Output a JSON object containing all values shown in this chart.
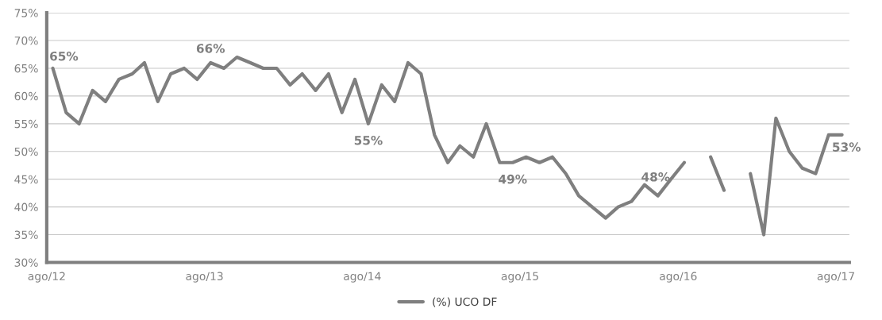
{
  "chart_data": {
    "type": "line",
    "x": [
      "2012-08-15",
      "2012-09-15",
      "2012-10-15",
      "2012-11-15",
      "2012-12-15",
      "2013-01-15",
      "2013-02-15",
      "2013-03-15",
      "2013-04-15",
      "2013-05-15",
      "2013-06-15",
      "2013-07-15",
      "2013-08-15",
      "2013-09-15",
      "2013-10-15",
      "2013-11-15",
      "2013-12-15",
      "2014-01-15",
      "2014-02-15",
      "2014-03-15",
      "2014-04-15",
      "2014-05-15",
      "2014-06-15",
      "2014-07-15",
      "2014-08-15",
      "2014-09-15",
      "2014-10-15",
      "2014-11-15",
      "2014-12-15",
      "2015-01-15",
      "2015-02-15",
      "2015-03-15",
      "2015-04-15",
      "2015-05-15",
      "2015-06-15",
      "2015-07-15",
      "2015-08-15",
      "2015-09-15",
      "2015-10-15",
      "2015-11-15",
      "2015-12-15",
      "2016-01-15",
      "2016-02-15",
      "2016-03-15",
      "2016-04-15",
      "2016-05-15",
      "2016-06-15",
      "2016-07-15",
      "2016-08-15",
      "2016-09-15",
      "2016-10-15",
      "2016-11-15",
      "2016-12-15",
      "2017-01-15",
      "2017-02-15",
      "2017-03-15",
      "2017-04-15",
      "2017-05-15",
      "2017-06-15",
      "2017-07-15",
      "2017-08-15"
    ],
    "series": [
      {
        "name": "(%) UCO DF",
        "color": "#7f7f7f",
        "values": [
          65,
          57,
          55,
          61,
          59,
          63,
          64,
          66,
          59,
          64,
          65,
          63,
          66,
          65,
          67,
          66,
          65,
          65,
          62,
          64,
          61,
          64,
          57,
          63,
          55,
          62,
          59,
          66,
          64,
          53,
          48,
          51,
          49,
          55,
          48,
          48,
          49,
          48,
          49,
          46,
          42,
          40,
          38,
          40,
          41,
          44,
          42,
          45,
          48,
          null,
          49,
          43,
          null,
          46,
          35,
          56,
          50,
          47,
          46,
          53,
          53
        ]
      }
    ],
    "xlim": [
      "2012-08-01",
      "2017-09-01"
    ],
    "xticks": [
      {
        "value": "2012-08-01",
        "label": "ago/12"
      },
      {
        "value": "2013-08-01",
        "label": "ago/13"
      },
      {
        "value": "2014-08-01",
        "label": "ago/14"
      },
      {
        "value": "2015-08-01",
        "label": "ago/15"
      },
      {
        "value": "2016-08-01",
        "label": "ago/16"
      },
      {
        "value": "2017-08-01",
        "label": "ago/17"
      }
    ],
    "ylim": [
      30,
      75
    ],
    "yticks": [
      {
        "value": 30,
        "label": "30%"
      },
      {
        "value": 35,
        "label": "35%"
      },
      {
        "value": 40,
        "label": "40%"
      },
      {
        "value": 45,
        "label": "45%"
      },
      {
        "value": 50,
        "label": "50%"
      },
      {
        "value": 55,
        "label": "55%"
      },
      {
        "value": 60,
        "label": "60%"
      },
      {
        "value": 65,
        "label": "65%"
      },
      {
        "value": 70,
        "label": "70%"
      },
      {
        "value": 75,
        "label": "75%"
      }
    ],
    "grid": "y",
    "legend": "bottom",
    "marker": "none",
    "line_style": "solid",
    "annotations": [
      {
        "text": "65%",
        "x": "2012-08-15",
        "y": 65
      },
      {
        "text": "66%",
        "x": "2013-08-15",
        "y": 66
      },
      {
        "text": "55%",
        "x": "2014-08-15",
        "y": 55
      },
      {
        "text": "49%",
        "x": "2015-07-15",
        "y": 48
      },
      {
        "text": "48%",
        "x": "2016-08-15",
        "y": 48
      },
      {
        "text": "53%",
        "x": "2017-08-15",
        "y": 53
      }
    ]
  }
}
